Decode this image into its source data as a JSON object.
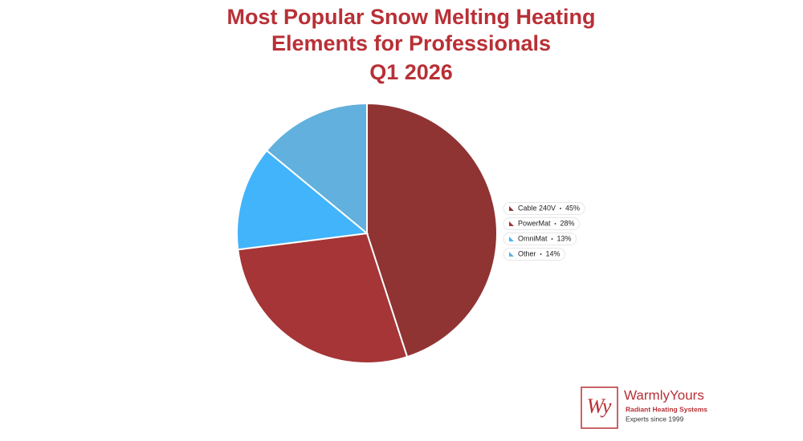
{
  "chart_data": {
    "type": "pie",
    "title": [
      "Most Popular Snow Melting Heating",
      "Elements for Professionals",
      "Q1 2026"
    ],
    "categories": [
      "Cable 240V",
      "PowerMat",
      "OmniMat",
      "Other"
    ],
    "values": [
      45,
      28,
      13,
      14
    ],
    "value_labels": [
      "45%",
      "28%",
      "13%",
      "14%"
    ],
    "colors": [
      "#8f3433",
      "#a53536",
      "#42b4fb",
      "#61b0dd"
    ],
    "legend": "right"
  },
  "logo": {
    "mark": "Wy",
    "name": "WarmlyYours",
    "tagline": "Radiant Heating Systems",
    "since": "Experts since 1999"
  }
}
